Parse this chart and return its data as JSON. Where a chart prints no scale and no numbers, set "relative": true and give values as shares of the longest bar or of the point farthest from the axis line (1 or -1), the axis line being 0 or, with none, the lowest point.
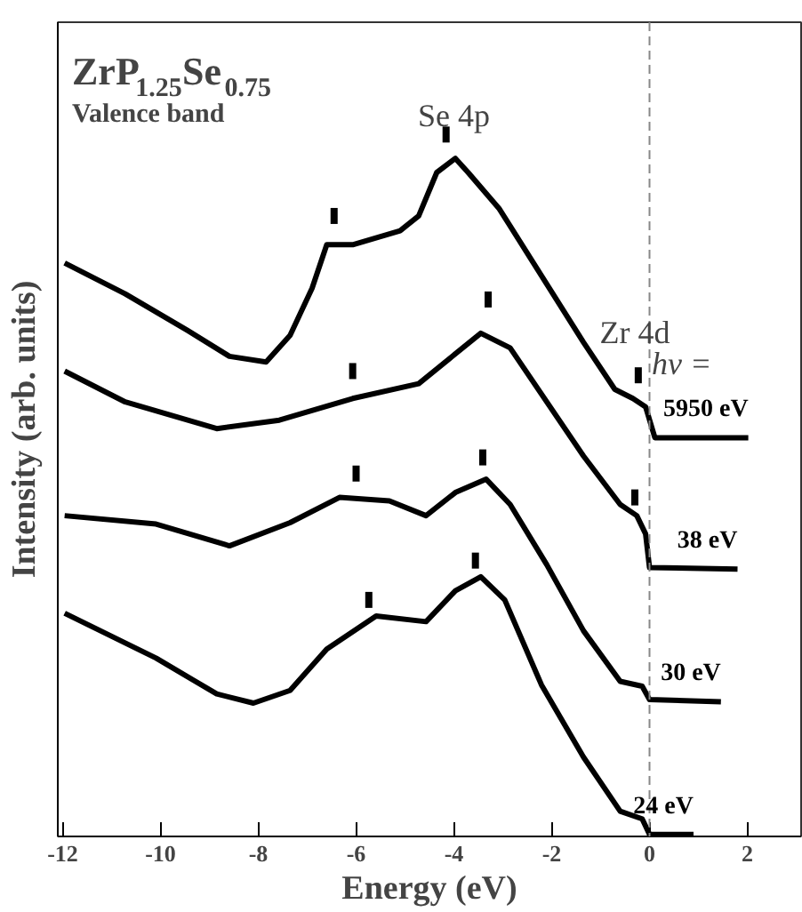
{
  "chart_data": {
    "type": "line",
    "relative": true,
    "xlabel": "Energy (eV)",
    "ylabel": "Intensity (arb. units)",
    "xlim": [
      -12.1,
      3.1
    ],
    "xticks": [
      -12,
      -10,
      -8,
      -6,
      -4,
      -2,
      0,
      2
    ],
    "grid": false,
    "legend": false,
    "line_style": "solid",
    "ref_lines": [
      {
        "axis": "x",
        "value": 0,
        "label": null,
        "color": "#888888",
        "line_style": "dashed"
      }
    ],
    "annotations": [
      "ZrP$_{1.25}$Se$_{0.75}$",
      "Valence band",
      "hν =",
      {
        "text": "Se 4p",
        "x": -4.0,
        "y": 0.966
      },
      {
        "text": "Zr 4d",
        "x": -0.3,
        "y": 0.657
      }
    ],
    "series": [
      {
        "name": "5950 eV",
        "color": "#000000",
        "x": [
          -11.96,
          -10.72,
          -9.45,
          -8.59,
          -7.84,
          -7.35,
          -6.9,
          -6.6,
          -6.07,
          -5.1,
          -4.72,
          -4.35,
          -3.97,
          -3.71,
          -3.07,
          -2.21,
          -1.35,
          -0.71,
          -0.34,
          -0.08,
          0.11,
          2.02
        ],
        "values": [
          0.817,
          0.773,
          0.721,
          0.684,
          0.676,
          0.714,
          0.781,
          0.843,
          0.843,
          0.863,
          0.884,
          0.946,
          0.966,
          0.946,
          0.894,
          0.799,
          0.704,
          0.637,
          0.624,
          0.612,
          0.568,
          0.568
        ]
      },
      {
        "name": "38 eV",
        "color": "#000000",
        "x": [
          -11.96,
          -10.72,
          -8.85,
          -7.57,
          -6.07,
          -4.72,
          -3.45,
          -2.85,
          -1.35,
          -0.6,
          -0.26,
          -0.08,
          0.0,
          1.8
        ],
        "values": [
          0.663,
          0.619,
          0.581,
          0.593,
          0.624,
          0.645,
          0.717,
          0.696,
          0.542,
          0.473,
          0.457,
          0.431,
          0.383,
          0.381
        ]
      },
      {
        "name": "30 eV",
        "color": "#000000",
        "x": [
          -11.96,
          -10.09,
          -8.59,
          -7.35,
          -6.34,
          -5.32,
          -4.57,
          -3.97,
          -3.34,
          -2.85,
          -2.1,
          -1.35,
          -0.6,
          -0.15,
          0.0,
          1.46
        ],
        "values": [
          0.457,
          0.445,
          0.414,
          0.447,
          0.483,
          0.478,
          0.457,
          0.49,
          0.509,
          0.473,
          0.387,
          0.293,
          0.221,
          0.214,
          0.195,
          0.192
        ]
      },
      {
        "name": "24 eV",
        "color": "#000000",
        "x": [
          -11.96,
          -10.09,
          -8.85,
          -8.1,
          -7.35,
          -6.6,
          -5.59,
          -4.57,
          -3.97,
          -3.45,
          -2.96,
          -2.21,
          -1.35,
          -0.6,
          -0.15,
          0.0,
          0.9
        ],
        "values": [
          0.318,
          0.254,
          0.203,
          0.19,
          0.208,
          0.267,
          0.314,
          0.306,
          0.35,
          0.37,
          0.337,
          0.216,
          0.113,
          0.036,
          0.025,
          0.003,
          0.003
        ]
      },
      {
        "type": "scatter",
        "marker": "square",
        "color": "#000000",
        "x": [
          -6.45,
          -4.16,
          -0.23,
          -6.07,
          -3.3,
          -0.3,
          -6.0,
          -3.41,
          -5.74,
          -3.56
        ],
        "values": [
          0.884,
          1.0,
          0.657,
          0.663,
          0.765,
          0.483,
          0.517,
          0.54,
          0.337,
          0.393
        ]
      }
    ]
  }
}
